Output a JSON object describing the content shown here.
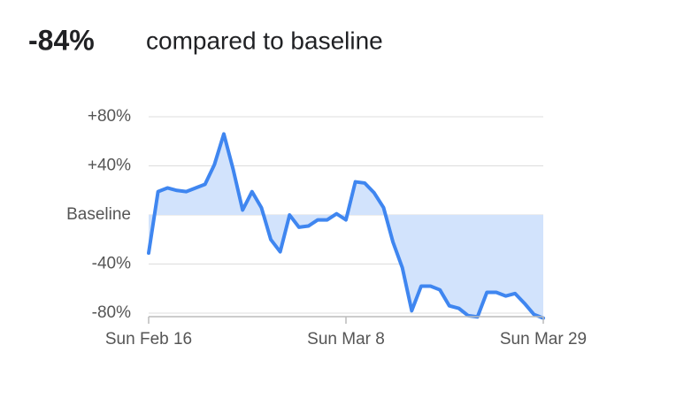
{
  "chart_data": {
    "type": "area-line",
    "title": "-84%",
    "subtitle": "compared to baseline",
    "categories": [
      "Sun Feb 16",
      null,
      null,
      null,
      null,
      null,
      null,
      null,
      null,
      null,
      null,
      null,
      null,
      null,
      null,
      null,
      null,
      null,
      null,
      null,
      null,
      "Sun Mar 8",
      null,
      null,
      null,
      null,
      null,
      null,
      null,
      null,
      null,
      null,
      null,
      null,
      null,
      null,
      null,
      null,
      null,
      null,
      null,
      null,
      "Sun Mar 29"
    ],
    "values": [
      -31,
      19,
      22,
      20,
      19,
      22,
      25,
      41,
      66,
      37,
      4,
      19,
      6,
      -20,
      -30,
      0,
      -10,
      -9,
      -4,
      -4,
      1,
      -4,
      27,
      26,
      18,
      6,
      -22,
      -43,
      -78,
      -58,
      -58,
      -61,
      -74,
      -76,
      -82,
      -83,
      -63,
      -63,
      -66,
      -64,
      -72,
      -81,
      -84
    ],
    "color": "#3f86f0",
    "fill_color": "#d2e3fc",
    "ylim": [
      -85,
      80
    ],
    "yticks": [
      {
        "value": 80,
        "label": "+80%"
      },
      {
        "value": 40,
        "label": "+40%"
      },
      {
        "value": 0,
        "label": "Baseline"
      },
      {
        "value": -40,
        "label": "-40%"
      },
      {
        "value": -80,
        "label": "-80%"
      }
    ],
    "grid": true
  }
}
